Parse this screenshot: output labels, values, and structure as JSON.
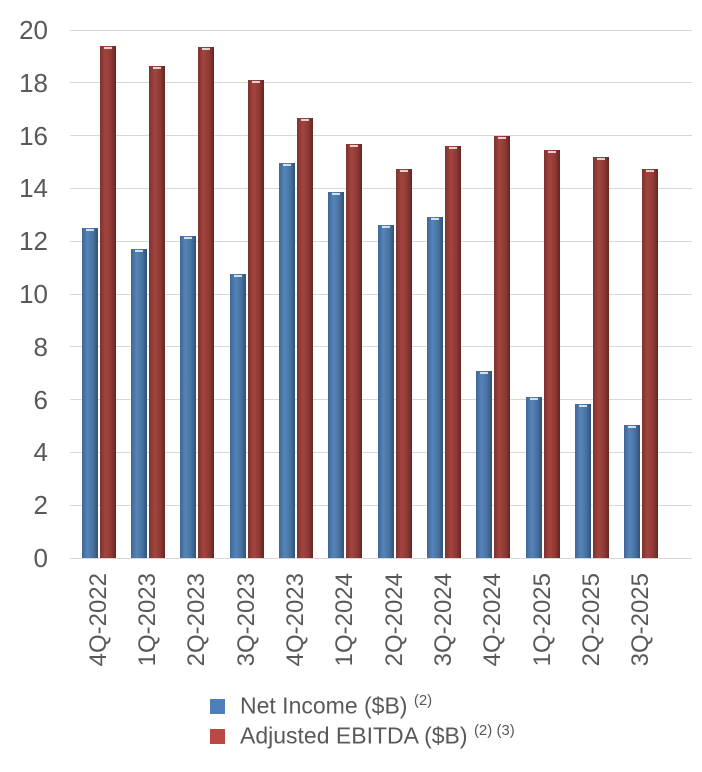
{
  "chart_data": {
    "type": "bar",
    "title": "",
    "xlabel": "",
    "ylabel": "",
    "categories": [
      "4Q-2022",
      "1Q-2023",
      "2Q-2023",
      "3Q-2023",
      "4Q-2023",
      "1Q-2024",
      "2Q-2024",
      "3Q-2024",
      "4Q-2024",
      "1Q-2025",
      "2Q-2025",
      "3Q-2025"
    ],
    "series": [
      {
        "name": "Net Income ($B)",
        "superscript": "(2)",
        "color": "#4E7FBA",
        "values": [
          12.5,
          11.7,
          12.2,
          10.75,
          14.95,
          13.85,
          12.6,
          12.9,
          7.1,
          6.1,
          5.85,
          5.05
        ]
      },
      {
        "name": "Adjusted EBITDA ($B)",
        "superscript": "(2) (3)",
        "color": "#BC4843",
        "values": [
          19.4,
          18.65,
          19.35,
          18.1,
          16.65,
          15.7,
          14.75,
          15.6,
          16.0,
          15.45,
          15.2,
          14.75
        ]
      }
    ],
    "ylim": [
      0,
      20
    ],
    "ytick_step": 2,
    "grid": true,
    "gridline_color": "#d8d8d8",
    "axis_label_color": "#595959",
    "legend_position": "bottom"
  }
}
